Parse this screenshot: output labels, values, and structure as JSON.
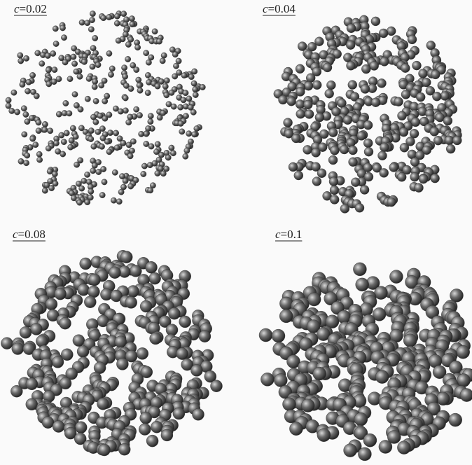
{
  "panels": [
    {
      "symbol": "c",
      "value": "=0.02"
    },
    {
      "symbol": "c",
      "value": "=0.04"
    },
    {
      "symbol": "c",
      "value": "=0.08"
    },
    {
      "symbol": "c",
      "value": "=0.1"
    }
  ]
}
